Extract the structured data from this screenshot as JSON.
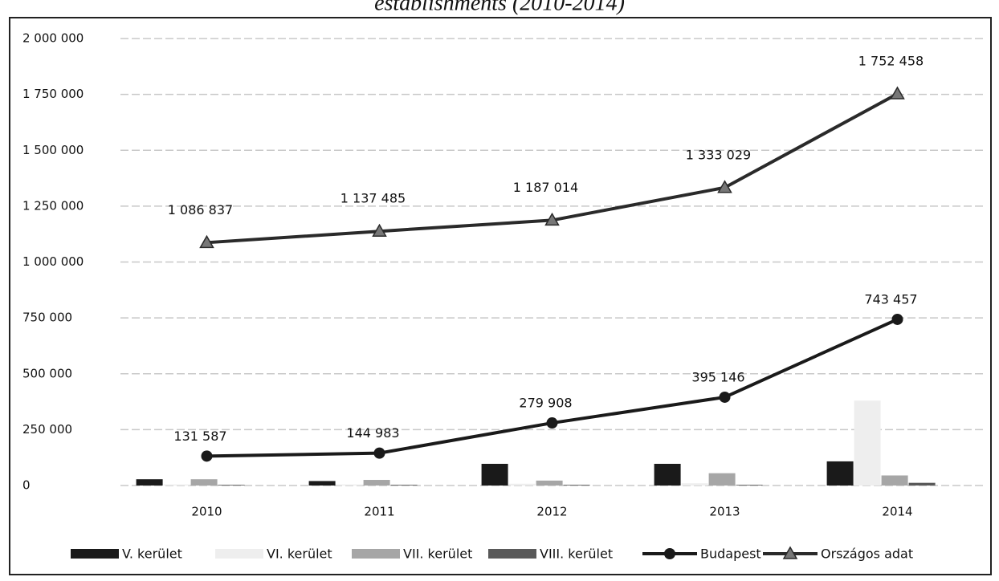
{
  "chart_data": {
    "type": "bar",
    "title": "establishments (2010-2014)",
    "categories": [
      "2010",
      "2011",
      "2012",
      "2013",
      "2014"
    ],
    "ylim": [
      0,
      2000000
    ],
    "yticks": [
      {
        "value": 0,
        "label": "0"
      },
      {
        "value": 250000,
        "label": "250 000"
      },
      {
        "value": 500000,
        "label": "500 000"
      },
      {
        "value": 750000,
        "label": "750 000"
      },
      {
        "value": 1000000,
        "label": "1 000 000"
      },
      {
        "value": 1250000,
        "label": "1 250 000"
      },
      {
        "value": 1500000,
        "label": "1 500 000"
      },
      {
        "value": 1750000,
        "label": "1 750 000"
      },
      {
        "value": 2000000,
        "label": "2 000 000"
      }
    ],
    "grid": true,
    "legend": "bottom",
    "series": [
      {
        "name": "V. kerület",
        "type": "bar",
        "color": "#1a1a1a",
        "values": [
          28000,
          20000,
          97000,
          97000,
          108000
        ]
      },
      {
        "name": "VI. kerület",
        "type": "bar",
        "color": "#eeeeee",
        "values": [
          5000,
          5000,
          8000,
          10000,
          380000
        ]
      },
      {
        "name": "VII. kerület",
        "type": "bar",
        "color": "#a6a6a6",
        "values": [
          28000,
          25000,
          22000,
          55000,
          45000
        ]
      },
      {
        "name": "VIII. kerület",
        "type": "bar",
        "color": "#595959",
        "values": [
          3000,
          3000,
          3000,
          3000,
          12000
        ]
      },
      {
        "name": "Budapest",
        "type": "line",
        "marker": "circle",
        "color": "#1a1a1a",
        "values": [
          131587,
          144983,
          279908,
          395146,
          743457
        ],
        "value_labels": [
          "131 587",
          "144 983",
          "279 908",
          "395 146",
          "743 457"
        ]
      },
      {
        "name": "Országos adat",
        "type": "line",
        "marker": "triangle",
        "color": "#2a2a2a",
        "values": [
          1086837,
          1137485,
          1187014,
          1333029,
          1752458
        ],
        "value_labels": [
          "1 086 837",
          "1 137 485",
          "1 187 014",
          "1 333 029",
          "1 752 458"
        ]
      }
    ]
  }
}
